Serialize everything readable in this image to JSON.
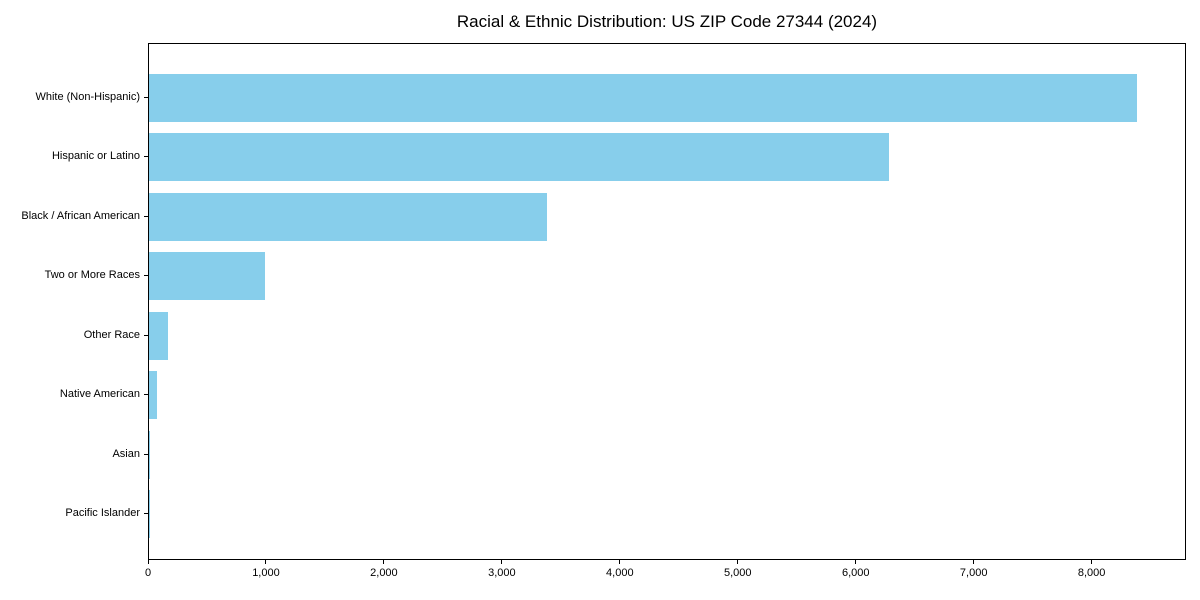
{
  "chart_data": {
    "type": "bar",
    "orientation": "horizontal",
    "title": "Racial & Ethnic Distribution: US ZIP Code 27344 (2024)",
    "categories": [
      "White (Non-Hispanic)",
      "Hispanic or Latino",
      "Black / African American",
      "Two or More Races",
      "Other Race",
      "Native American",
      "Asian",
      "Pacific Islander"
    ],
    "values": [
      8380,
      6270,
      3370,
      980,
      165,
      65,
      12,
      2
    ],
    "xlabel": "",
    "ylabel": "",
    "xlim": [
      0,
      8800
    ],
    "xticks": [
      0,
      1000,
      2000,
      3000,
      4000,
      5000,
      6000,
      7000,
      8000
    ],
    "xtick_labels": [
      "0",
      "1,000",
      "2,000",
      "3,000",
      "4,000",
      "5,000",
      "6,000",
      "7,000",
      "8,000"
    ],
    "bar_color": "#87CEEB",
    "axis_color": "#000000",
    "background_color": "#ffffff",
    "grid": false,
    "legend": null
  }
}
